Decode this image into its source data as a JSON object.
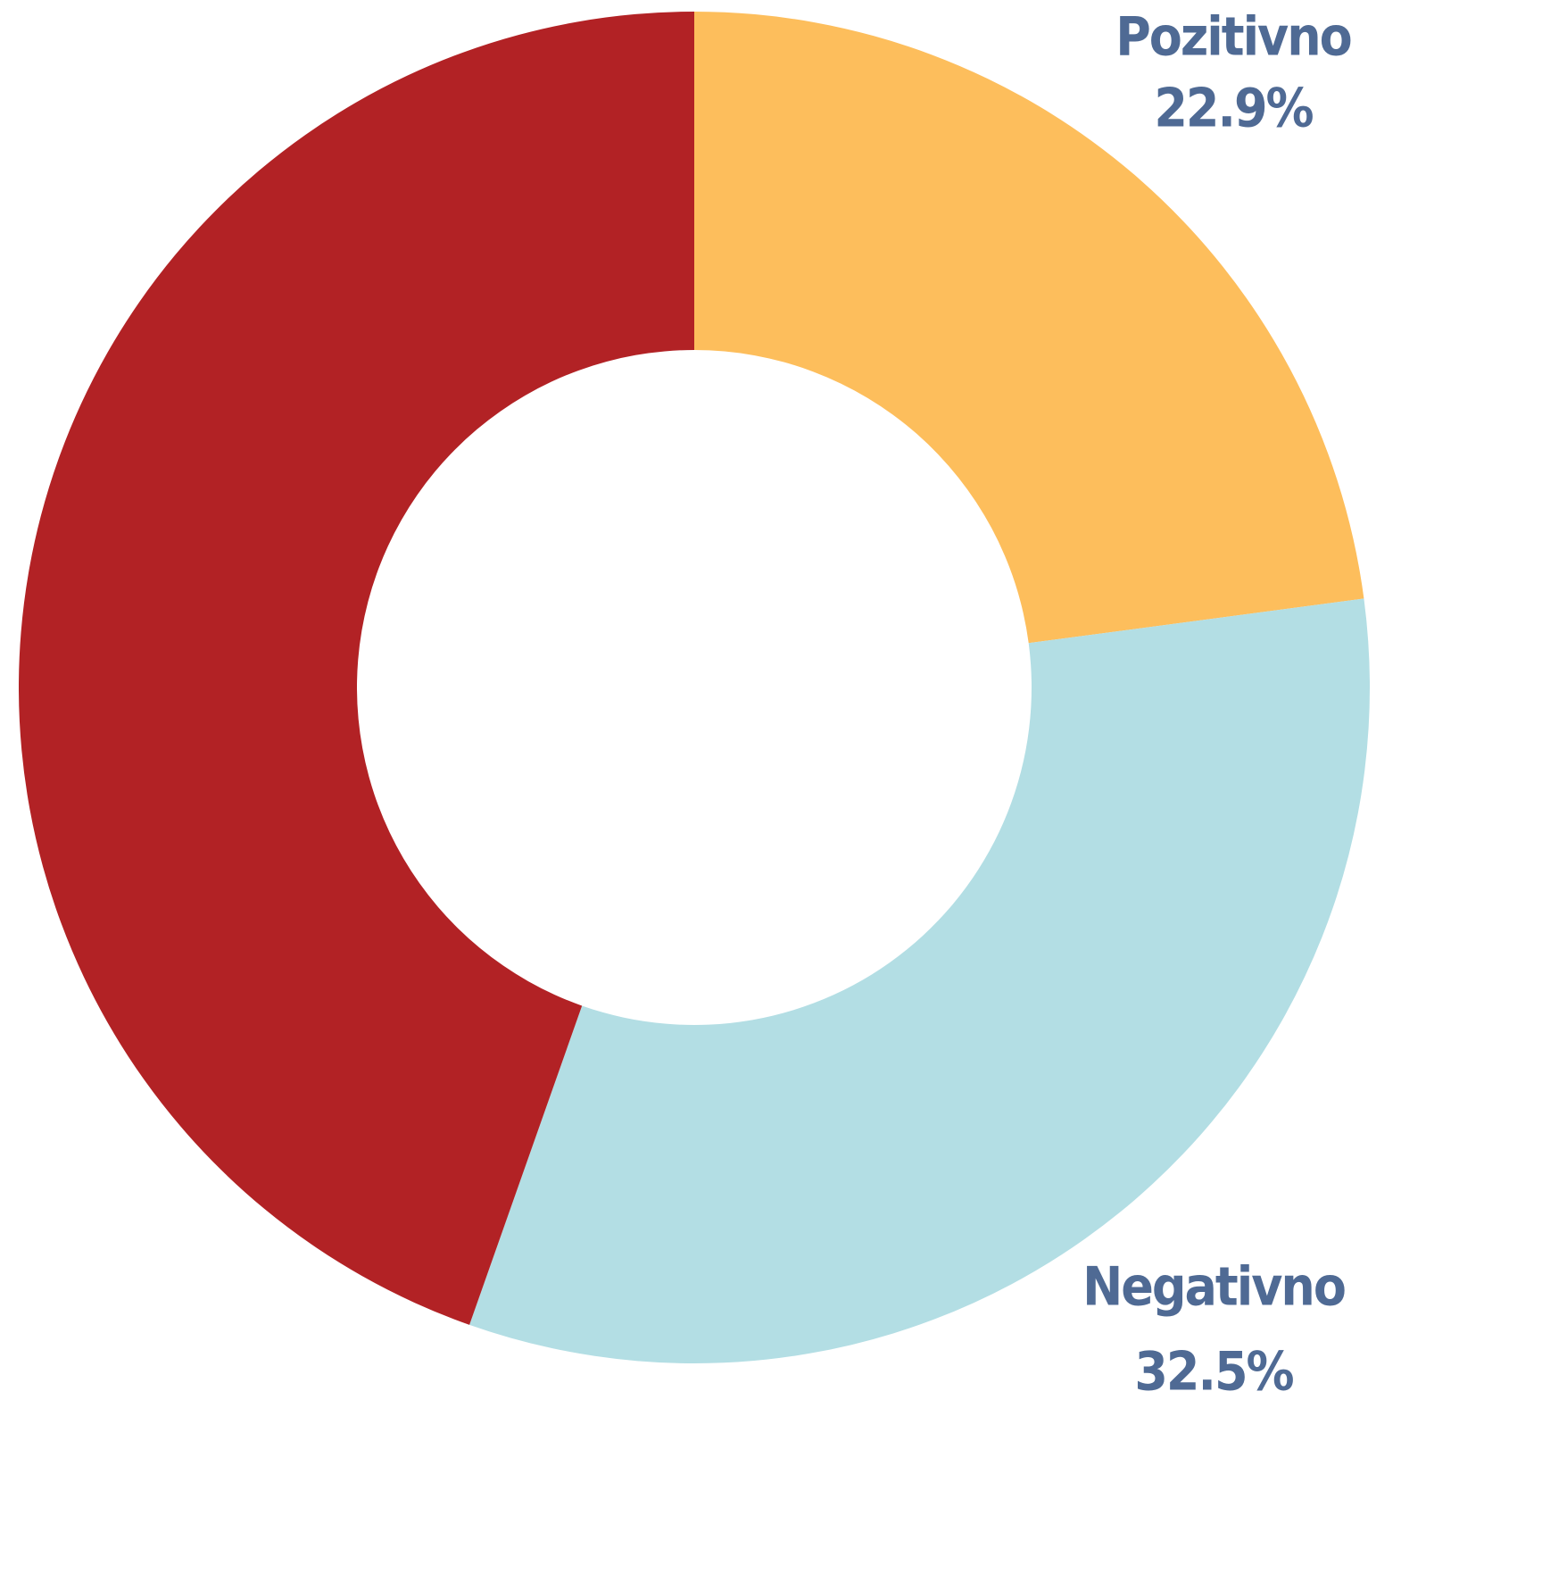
{
  "chart_data": {
    "type": "donut",
    "categories": [
      "Pozitivno",
      "Negativno",
      null
    ],
    "values": [
      22.9,
      32.5,
      44.6
    ],
    "value_labels": [
      "22.9%",
      "32.5%",
      null
    ],
    "colors": [
      "#fdbe5c",
      "#b3dee4",
      "#b22225"
    ]
  }
}
